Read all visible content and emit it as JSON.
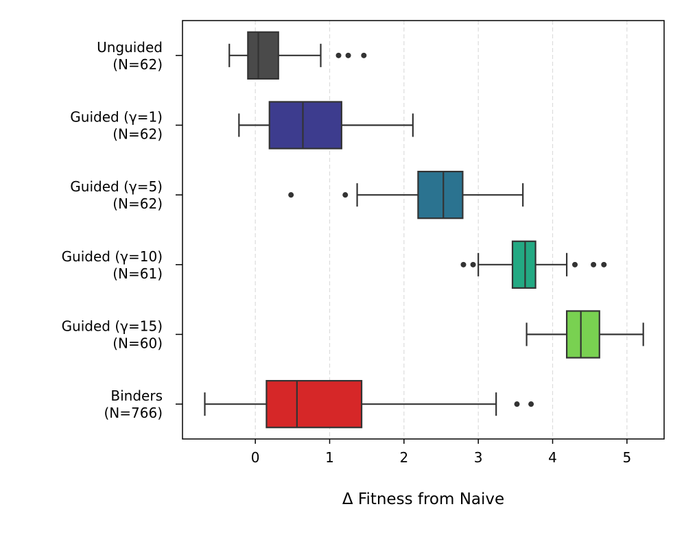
{
  "chart_data": {
    "type": "boxplot",
    "orientation": "horizontal",
    "xlabel": "Δ Fitness from Naive",
    "ylabel": "",
    "xlim": [
      -0.98,
      5.5
    ],
    "xticks": [
      0,
      1,
      2,
      3,
      4,
      5
    ],
    "xtick_labels": [
      "0",
      "1",
      "2",
      "3",
      "4",
      "5"
    ],
    "grid": {
      "x": true,
      "y": false,
      "style": "dashed"
    },
    "categories": [
      {
        "line1": "Unguided",
        "line2": "(N=62)"
      },
      {
        "line1": "Guided (γ=1)",
        "line2": "(N=62)"
      },
      {
        "line1": "Guided (γ=5)",
        "line2": "(N=62)"
      },
      {
        "line1": "Guided (γ=10)",
        "line2": "(N=61)"
      },
      {
        "line1": "Guided (γ=15)",
        "line2": "(N=60)"
      },
      {
        "line1": "Binders",
        "line2": "(N=766)"
      }
    ],
    "series": [
      {
        "whisker_low": -0.35,
        "q1": -0.1,
        "median": 0.04,
        "q3": 0.31,
        "whisker_high": 0.88,
        "outliers": [
          1.12,
          1.25,
          1.46
        ],
        "color": "#4a4a4a"
      },
      {
        "whisker_low": -0.22,
        "q1": 0.19,
        "median": 0.64,
        "q3": 1.16,
        "whisker_high": 2.12,
        "outliers": [],
        "color": "#3d3c8e"
      },
      {
        "whisker_low": 1.37,
        "q1": 2.19,
        "median": 2.53,
        "q3": 2.79,
        "whisker_high": 3.6,
        "outliers": [
          0.48,
          1.21
        ],
        "color": "#2b7390"
      },
      {
        "whisker_low": 3.0,
        "q1": 3.46,
        "median": 3.63,
        "q3": 3.77,
        "whisker_high": 4.19,
        "outliers": [
          2.8,
          2.93,
          4.3,
          4.55,
          4.69
        ],
        "color": "#23a983"
      },
      {
        "whisker_low": 3.65,
        "q1": 4.19,
        "median": 4.38,
        "q3": 4.63,
        "whisker_high": 5.22,
        "outliers": [],
        "color": "#79d151"
      },
      {
        "whisker_low": -0.68,
        "q1": 0.15,
        "median": 0.56,
        "q3": 1.43,
        "whisker_high": 3.24,
        "outliers": [
          3.52,
          3.71
        ],
        "color": "#d62728"
      }
    ]
  }
}
